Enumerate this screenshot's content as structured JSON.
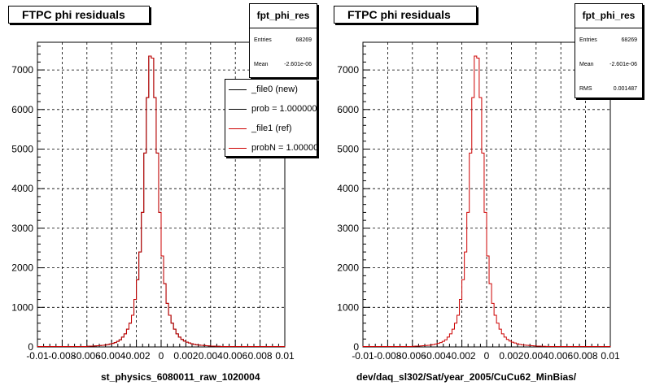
{
  "panels": [
    {
      "title": "FTPC phi residuals",
      "xlabel": "st_physics_6080011_raw_1020004",
      "stats": {
        "name": "fpt_phi_res",
        "rows": [
          {
            "key": "Entries",
            "value": "68269"
          },
          {
            "key": "Mean",
            "value": "-2.601e-06"
          }
        ]
      },
      "legend": [
        {
          "label": "_file0 (new)",
          "color": "#000000"
        },
        {
          "label": "prob = 1.000000",
          "color": "#000000"
        },
        {
          "label": "_file1 (ref)",
          "color": "#cc0000"
        },
        {
          "label": "probN = 1.000000",
          "color": "#cc0000"
        }
      ]
    },
    {
      "title": "FTPC phi residuals",
      "xlabel": "dev/daq_sl302/Sat/year_2005/CuCu62_MinBias/",
      "stats": {
        "name": "fpt_phi_res",
        "rows": [
          {
            "key": "Entries",
            "value": "68269"
          },
          {
            "key": "Mean",
            "value": "-2.601e-06"
          },
          {
            "key": "RMS",
            "value": "0.001487"
          }
        ]
      },
      "legend": []
    }
  ],
  "chart_data": [
    {
      "type": "histogram",
      "title": "FTPC phi residuals",
      "xlabel": "st_physics_6080011_raw_1020004",
      "ylabel": "",
      "xlim": [
        -0.01,
        0.01
      ],
      "ylim": [
        0,
        7700
      ],
      "xticks": [
        -0.01,
        -0.008,
        -0.006,
        -0.004,
        -0.002,
        0,
        0.002,
        0.004,
        0.006,
        0.008,
        0.01
      ],
      "xtick_labels": [
        "-0.01",
        "-0.008",
        "-0.006",
        "-0.004",
        "-0.002",
        "0",
        "0.002",
        "0.004",
        "0.006",
        "0.008",
        "0.01"
      ],
      "yticks": [
        0,
        1000,
        2000,
        3000,
        4000,
        5000,
        6000,
        7000
      ],
      "grid": true,
      "bin_edges_range": [
        -0.01,
        0.01
      ],
      "n_bins": 100,
      "series": [
        {
          "name": "_file0 (new)",
          "color": "#000000",
          "values": [
            10,
            10,
            10,
            10,
            10,
            10,
            10,
            10,
            10,
            10,
            10,
            10,
            10,
            10,
            10,
            10,
            10,
            10,
            10,
            10,
            15,
            20,
            20,
            25,
            30,
            35,
            40,
            50,
            60,
            75,
            90,
            110,
            140,
            180,
            250,
            330,
            450,
            600,
            800,
            1200,
            1700,
            2400,
            3400,
            4900,
            6300,
            7350,
            7300,
            6300,
            4900,
            3400,
            2300,
            1600,
            1100,
            800,
            600,
            450,
            330,
            250,
            190,
            150,
            120,
            100,
            80,
            65,
            55,
            45,
            40,
            35,
            30,
            25,
            20,
            20,
            15,
            15,
            10,
            10,
            10,
            10,
            10,
            10,
            10,
            10,
            10,
            10,
            10,
            10,
            10,
            10,
            10,
            10,
            10,
            10,
            10,
            10,
            10,
            10,
            10,
            10,
            10,
            10
          ]
        },
        {
          "name": "_file1 (ref)",
          "color": "#cc0000",
          "values": [
            10,
            10,
            10,
            10,
            10,
            10,
            10,
            10,
            10,
            10,
            10,
            10,
            10,
            10,
            10,
            10,
            10,
            10,
            10,
            10,
            15,
            20,
            20,
            25,
            30,
            35,
            40,
            50,
            60,
            75,
            90,
            110,
            140,
            180,
            250,
            330,
            450,
            600,
            800,
            1200,
            1700,
            2400,
            3400,
            4900,
            6300,
            7350,
            7300,
            6300,
            4900,
            3400,
            2300,
            1600,
            1100,
            800,
            600,
            450,
            330,
            250,
            190,
            150,
            120,
            100,
            80,
            65,
            55,
            45,
            40,
            35,
            30,
            25,
            20,
            20,
            15,
            15,
            10,
            10,
            10,
            10,
            10,
            10,
            10,
            10,
            10,
            10,
            10,
            10,
            10,
            10,
            10,
            10,
            10,
            10,
            10,
            10,
            10,
            10,
            10,
            10,
            10,
            10
          ]
        }
      ]
    },
    {
      "type": "histogram",
      "title": "FTPC phi residuals",
      "xlabel": "dev/daq_sl302/Sat/year_2005/CuCu62_MinBias/",
      "ylabel": "",
      "xlim": [
        -0.01,
        0.01
      ],
      "ylim": [
        0,
        7700
      ],
      "xticks": [
        -0.01,
        -0.008,
        -0.006,
        -0.004,
        -0.002,
        0,
        0.002,
        0.004,
        0.006,
        0.008,
        0.01
      ],
      "xtick_labels": [
        "-0.01",
        "-0.008",
        "-0.006",
        "-0.004",
        "-0.002",
        "0",
        "0.002",
        "0.004",
        "0.006",
        "0.008",
        "0.01"
      ],
      "yticks": [
        0,
        1000,
        2000,
        3000,
        4000,
        5000,
        6000,
        7000
      ],
      "grid": true,
      "bin_edges_range": [
        -0.01,
        0.01
      ],
      "n_bins": 100,
      "series": [
        {
          "color": "#cc0000",
          "values": [
            10,
            10,
            10,
            10,
            10,
            10,
            10,
            10,
            10,
            10,
            10,
            10,
            10,
            10,
            10,
            10,
            10,
            10,
            10,
            10,
            15,
            20,
            20,
            25,
            30,
            35,
            40,
            50,
            60,
            75,
            90,
            110,
            140,
            180,
            250,
            330,
            450,
            600,
            800,
            1200,
            1700,
            2400,
            3400,
            4900,
            6300,
            7350,
            7300,
            6300,
            4900,
            3400,
            2300,
            1600,
            1100,
            800,
            600,
            450,
            330,
            250,
            190,
            150,
            120,
            100,
            80,
            65,
            55,
            45,
            40,
            35,
            30,
            25,
            20,
            20,
            15,
            15,
            10,
            10,
            10,
            10,
            10,
            10,
            10,
            10,
            10,
            10,
            10,
            10,
            10,
            10,
            10,
            10,
            10,
            10,
            10,
            10,
            10,
            10,
            10,
            10,
            10,
            10
          ]
        }
      ]
    }
  ]
}
